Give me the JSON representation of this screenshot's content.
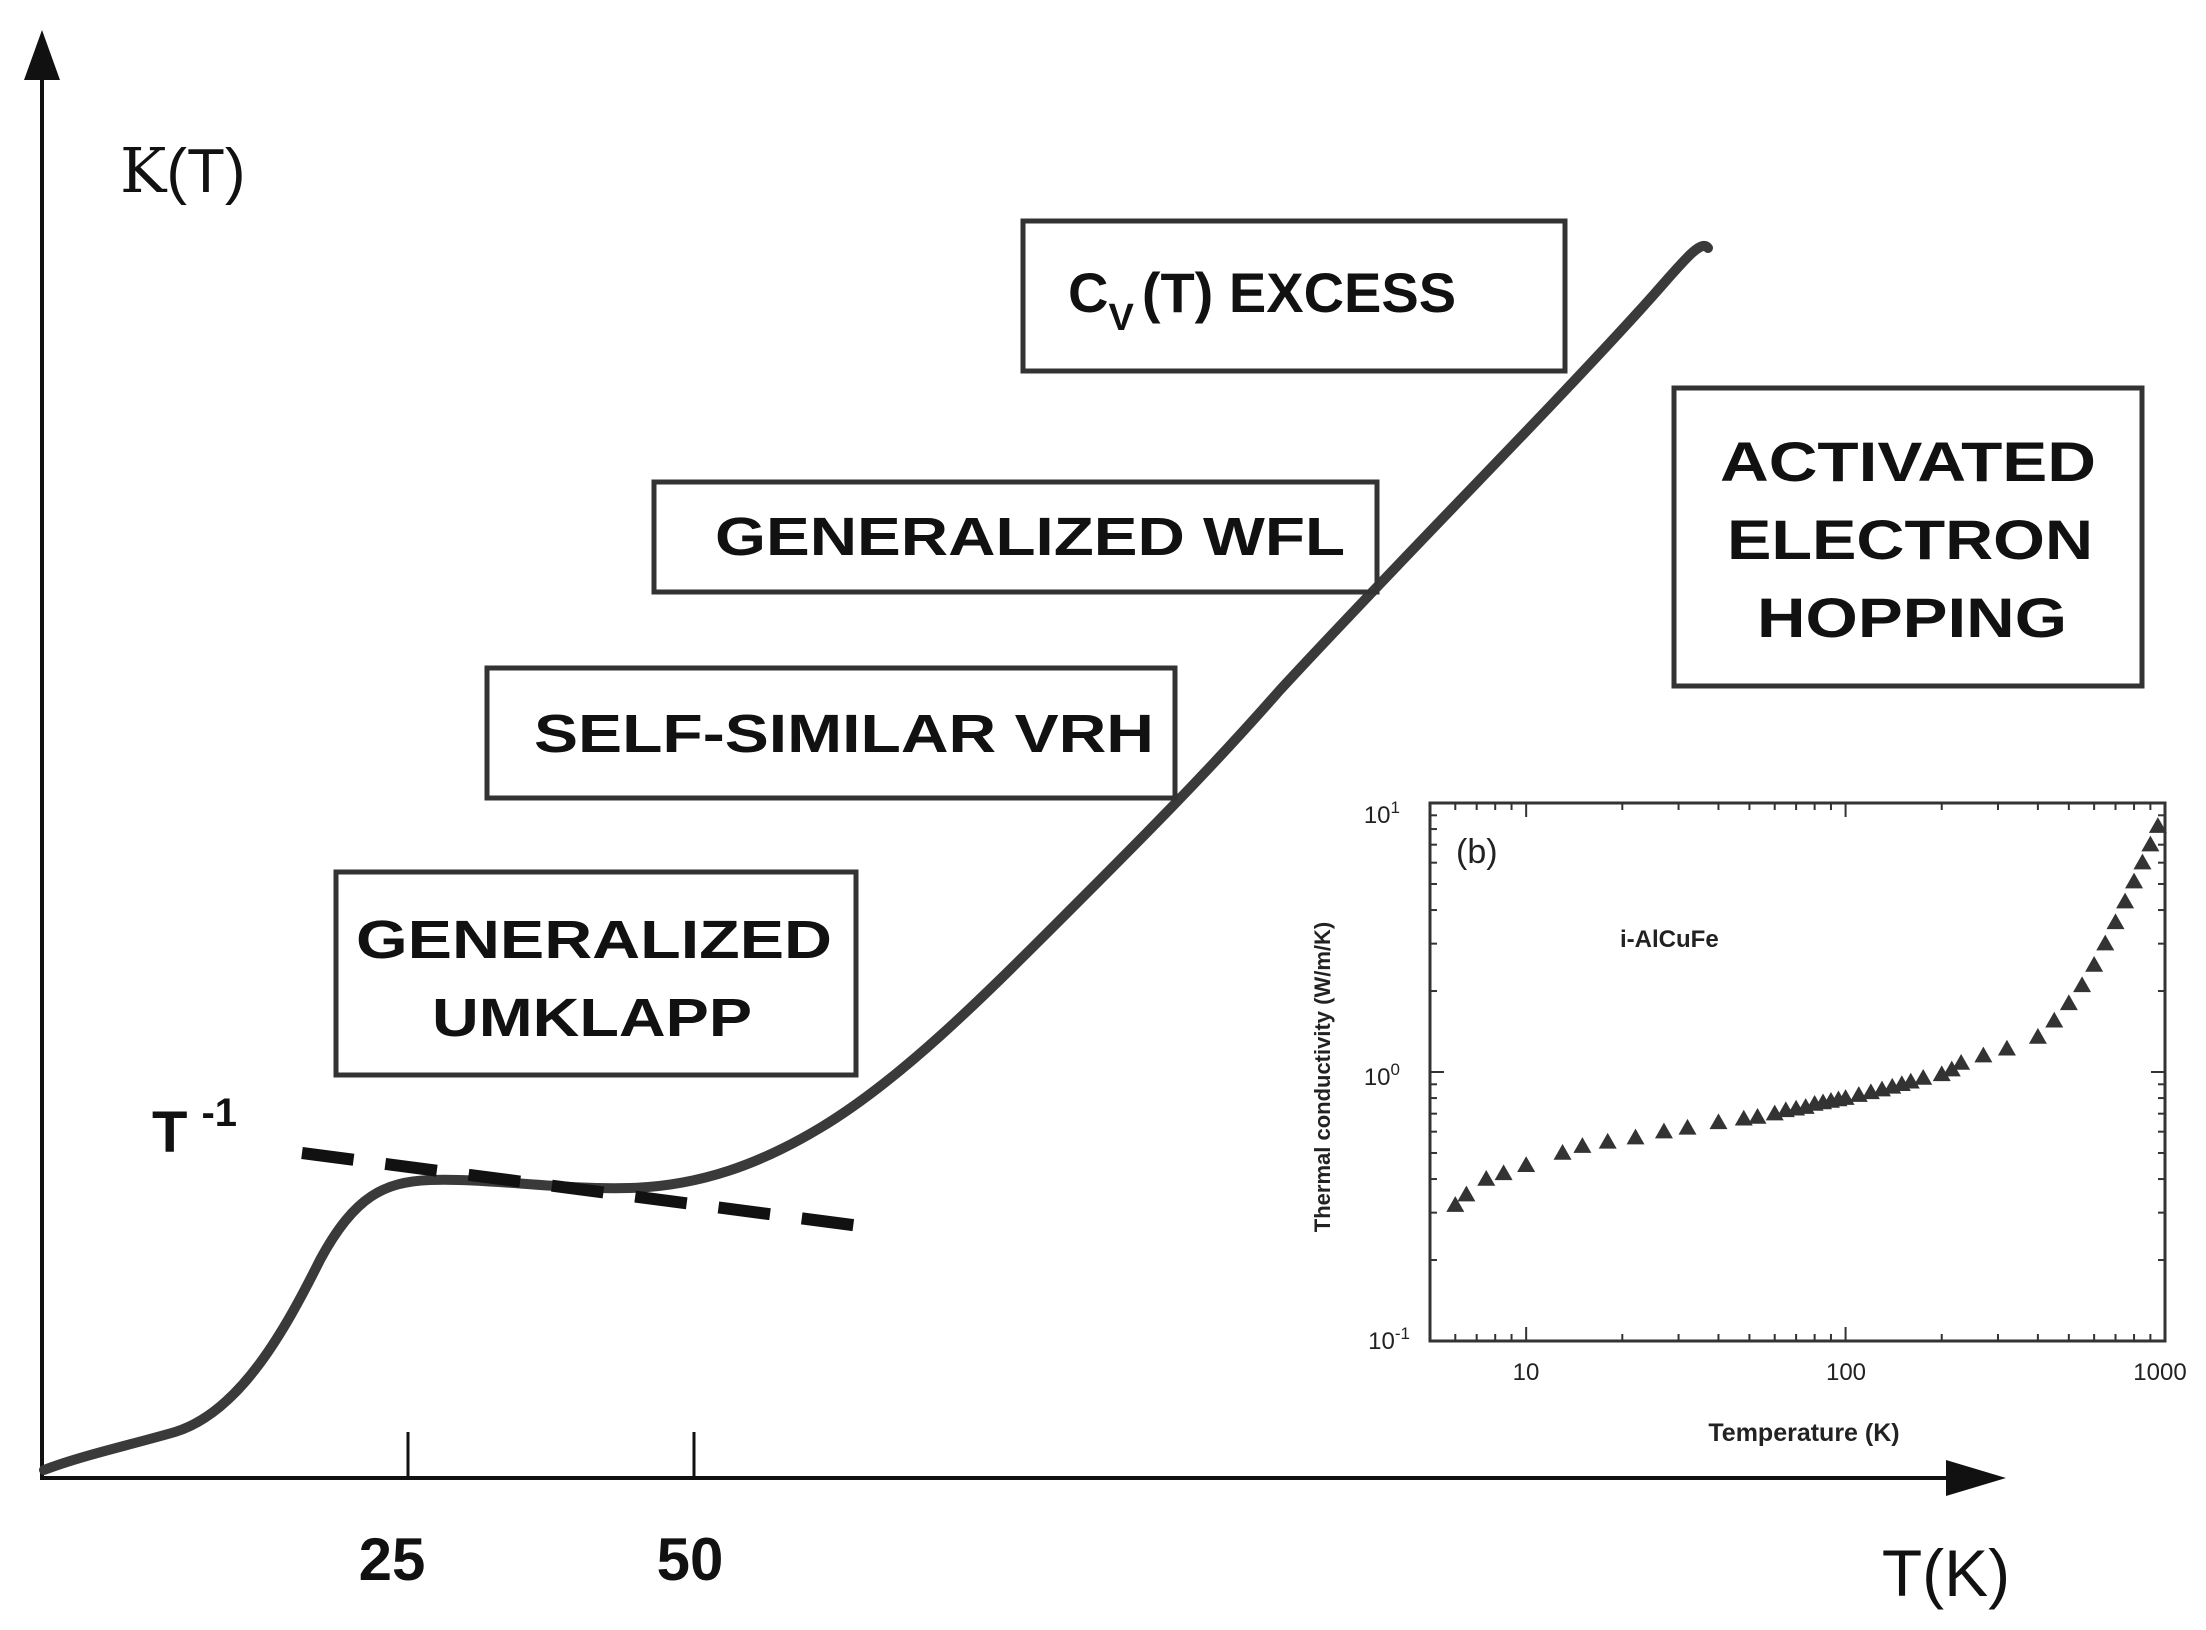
{
  "colors": {
    "ink": "#111111",
    "curve": "#3a3a3a",
    "inset": "#333333",
    "background": "#ffffff"
  },
  "chart_data": [
    {
      "type": "line",
      "title": "",
      "ylabel_main": "K",
      "ylabel_paren": "(T)",
      "xlabel": "T(K)",
      "xticks": [
        "25",
        "50"
      ],
      "fit_label": {
        "base": "T",
        "exp": "-1"
      },
      "regimes": {
        "umklapp": [
          "GENERALIZED",
          "UMKLAPP"
        ],
        "vrh": "SELF-SIMILAR VRH",
        "wfl": "GENERALIZED WFL",
        "cv": {
          "base": "C",
          "sub": "V",
          "rest": "(T) EXCESS"
        },
        "hopping": [
          "ACTIVATED",
          "ELECTRON",
          "HOPPING"
        ]
      },
      "curve_description": "schematic thermal conductivity: rise to a plateau near 25–50 K following T^-1, then monotonic increase at high temperature"
    },
    {
      "type": "scatter",
      "panel_label": "(b)",
      "series_label": "i-AlCuFe",
      "xlabel": "Temperature (K)",
      "ylabel": "Thermal conductivity (W/m/K)",
      "xscale": "log",
      "yscale": "log",
      "xlim": [
        5,
        1000
      ],
      "ylim": [
        0.1,
        10
      ],
      "xtick_labels": [
        "10",
        "100",
        "1000"
      ],
      "ytick_labels": [
        {
          "base": "10",
          "exp": "1"
        },
        {
          "base": "10",
          "exp": "0"
        },
        {
          "base": "10",
          "exp": "-1"
        }
      ],
      "x": [
        6,
        6.5,
        7.5,
        8.5,
        10,
        13,
        15,
        18,
        22,
        27,
        32,
        40,
        48,
        53,
        60,
        65,
        70,
        75,
        80,
        85,
        90,
        95,
        100,
        110,
        120,
        130,
        140,
        150,
        160,
        175,
        200,
        215,
        230,
        270,
        320,
        400,
        450,
        500,
        550,
        600,
        650,
        700,
        750,
        800,
        850,
        900,
        950
      ],
      "y": [
        0.32,
        0.35,
        0.4,
        0.42,
        0.45,
        0.5,
        0.53,
        0.55,
        0.57,
        0.6,
        0.62,
        0.65,
        0.67,
        0.68,
        0.7,
        0.72,
        0.73,
        0.74,
        0.76,
        0.77,
        0.78,
        0.79,
        0.8,
        0.82,
        0.84,
        0.86,
        0.88,
        0.9,
        0.92,
        0.95,
        0.98,
        1.02,
        1.08,
        1.15,
        1.22,
        1.35,
        1.55,
        1.8,
        2.1,
        2.5,
        3.0,
        3.6,
        4.3,
        5.1,
        6.0,
        7.0,
        8.2
      ]
    }
  ]
}
